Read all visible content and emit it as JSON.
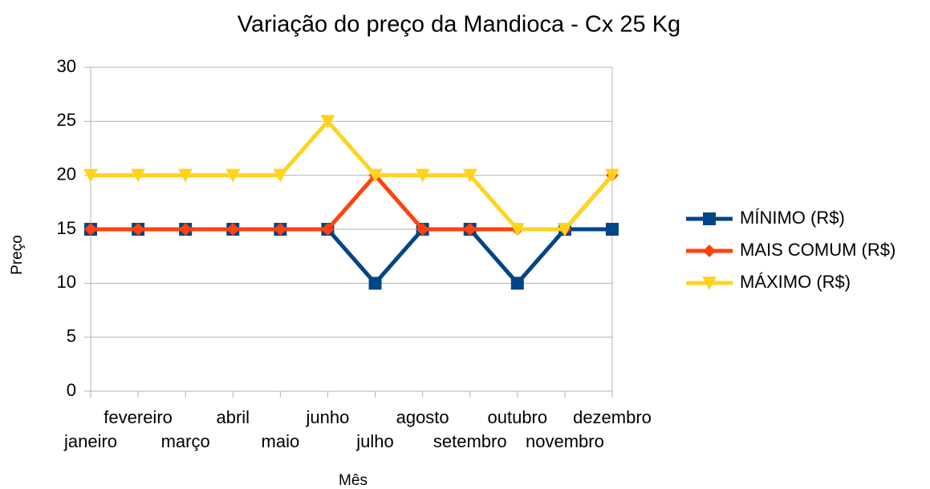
{
  "chart_data": {
    "type": "line",
    "title": "Variação do preço da Mandioca - Cx  25 Kg",
    "x_label": "Mês",
    "y_label": "Preço",
    "categories": [
      "janeiro",
      "fevereiro",
      "março",
      "abril",
      "maio",
      "junho",
      "julho",
      "agosto",
      "setembro",
      "outubro",
      "novembro",
      "dezembro"
    ],
    "series": [
      {
        "name": "MÍNIMO (R$)",
        "color": "#004586",
        "marker": "square",
        "values": [
          15,
          15,
          15,
          15,
          15,
          15,
          10,
          15,
          15,
          10,
          15,
          15
        ]
      },
      {
        "name": "MAIS COMUM (R$)",
        "color": "#ff420e",
        "marker": "diamond",
        "values": [
          15,
          15,
          15,
          15,
          15,
          15,
          20,
          15,
          15,
          15,
          15,
          20
        ]
      },
      {
        "name": "MÁXIMO (R$)",
        "color": "#ffd320",
        "marker": "triangle-down",
        "values": [
          20,
          20,
          20,
          20,
          20,
          25,
          20,
          20,
          20,
          15,
          15,
          20
        ]
      }
    ],
    "ylim": [
      0,
      30
    ],
    "yticks": [
      0,
      5,
      10,
      15,
      20,
      25,
      30
    ],
    "grid": true,
    "legend": "right"
  }
}
